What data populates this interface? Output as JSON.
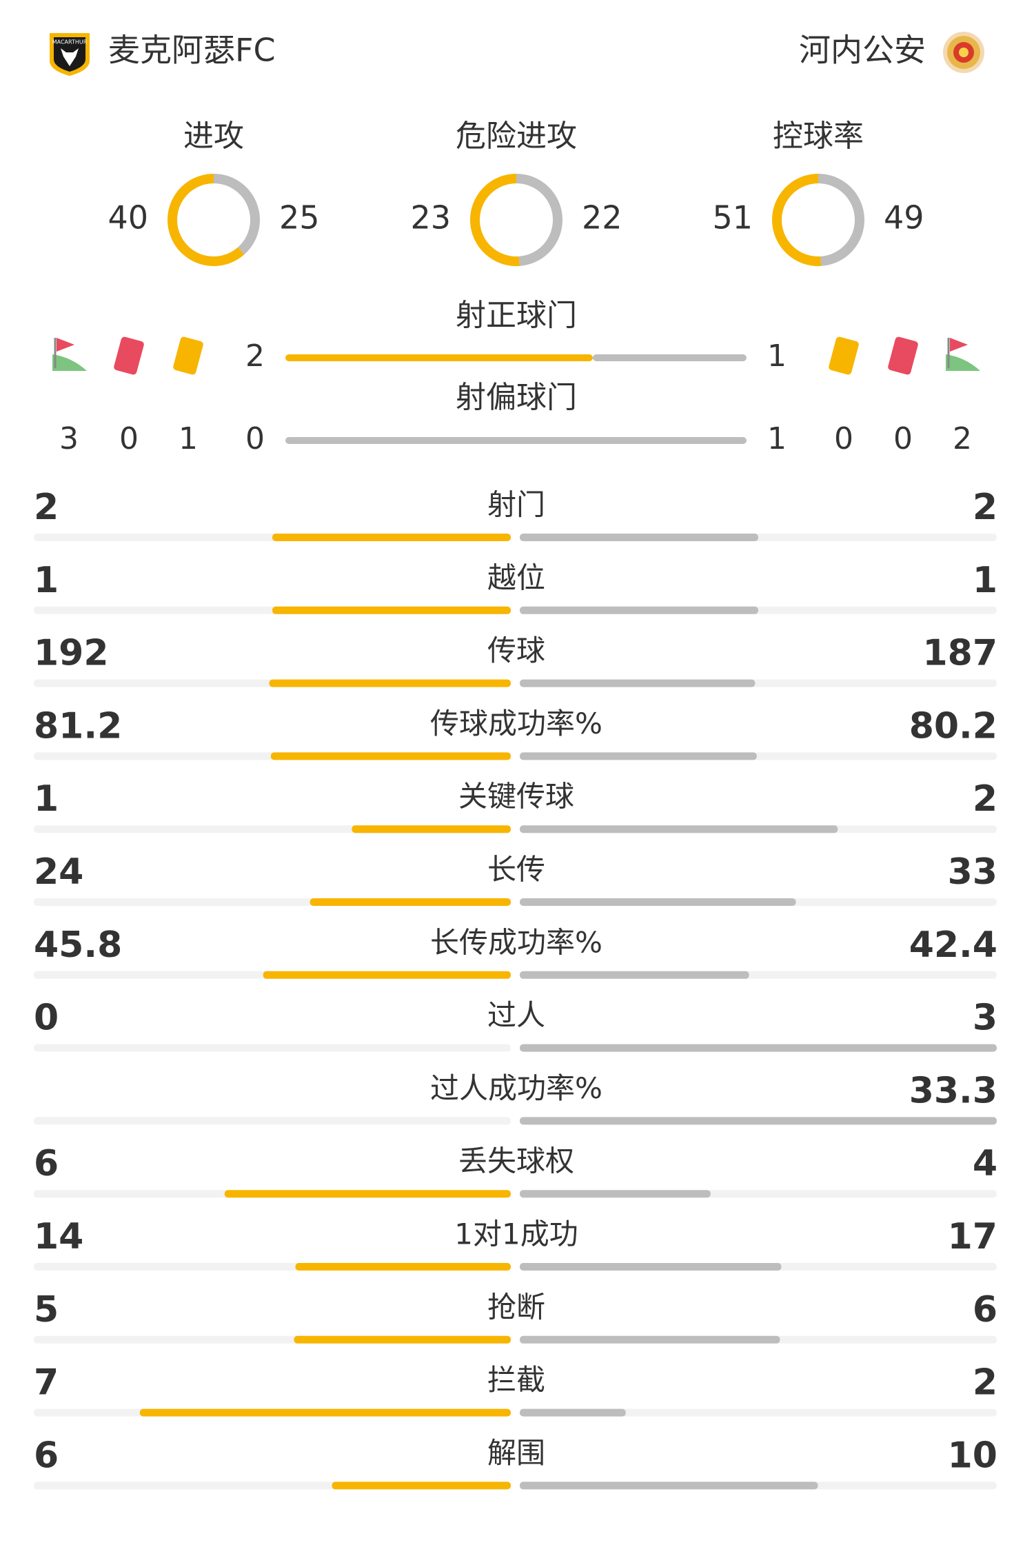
{
  "header": {
    "home_team": "麦克阿瑟FC",
    "away_team": "河内公安"
  },
  "colors": {
    "home": "#f7b500",
    "away": "#bdbdbd"
  },
  "donuts": [
    {
      "label": "进攻",
      "home": 40,
      "away": 25
    },
    {
      "label": "危险进攻",
      "home": 23,
      "away": 22
    },
    {
      "label": "控球率",
      "home": 51,
      "away": 49
    }
  ],
  "shots_on_target": {
    "label": "射正球门",
    "home": 2,
    "away": 1
  },
  "shots_off_target": {
    "label": "射偏球门",
    "home": 0,
    "away": 1
  },
  "cards": {
    "home": {
      "corners": 3,
      "red": 0,
      "yellow": 1
    },
    "away": {
      "yellow": 0,
      "red": 0,
      "corners": 2
    }
  },
  "stats": [
    {
      "label": "射门",
      "home": 2,
      "away": 2
    },
    {
      "label": "越位",
      "home": 1,
      "away": 1
    },
    {
      "label": "传球",
      "home": 192,
      "away": 187
    },
    {
      "label": "传球成功率%",
      "home": 81.2,
      "away": 80.2
    },
    {
      "label": "关键传球",
      "home": 1,
      "away": 2
    },
    {
      "label": "长传",
      "home": 24,
      "away": 33
    },
    {
      "label": "长传成功率%",
      "home": 45.8,
      "away": 42.4
    },
    {
      "label": "过人",
      "home": 0,
      "away": 3
    },
    {
      "label": "过人成功率%",
      "home": null,
      "away": 33.3
    },
    {
      "label": "丢失球权",
      "home": 6,
      "away": 4
    },
    {
      "label": "1对1成功",
      "home": 14,
      "away": 17
    },
    {
      "label": "抢断",
      "home": 5,
      "away": 6
    },
    {
      "label": "拦截",
      "home": 7,
      "away": 2
    },
    {
      "label": "解围",
      "home": 6,
      "away": 10
    }
  ]
}
